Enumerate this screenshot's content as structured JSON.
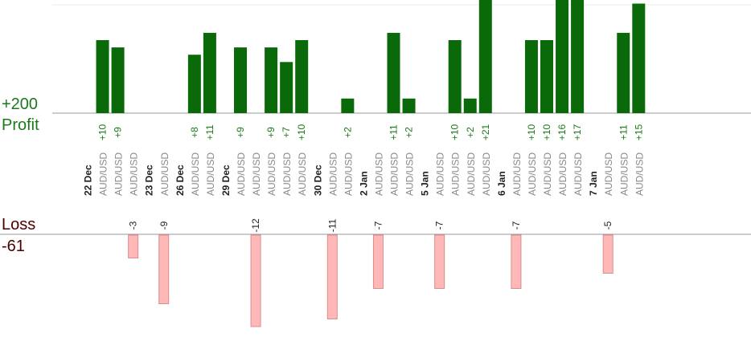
{
  "summary": {
    "profit_total": "+200",
    "profit_label": "Profit",
    "loss_label": "Loss",
    "loss_total": "-61"
  },
  "colors": {
    "profit_bar": "#0a6a0a",
    "profit_text": "#1a7a1a",
    "loss_bar": "#ffb8b8",
    "loss_border": "#e08a8a",
    "loss_text": "#4a0000",
    "date_text": "#222222",
    "symbol_text": "#888888",
    "axis": "#999999"
  },
  "chart_data": {
    "type": "bar",
    "title": "",
    "xlabel": "",
    "ylabel": "",
    "grid": false,
    "legend": "none",
    "categories": [
      "22 Dec",
      "AUD/USD",
      "AUD/USD",
      "AUD/USD",
      "23 Dec",
      "AUD/USD",
      "26 Dec",
      "AUD/USD",
      "AUD/USD",
      "29 Dec",
      "AUD/USD",
      "AUD/USD",
      "AUD/USD",
      "AUD/USD",
      "AUD/USD",
      "30 Dec",
      "AUD/USD",
      "AUD/USD",
      "2 Jan",
      "AUD/USD",
      "AUD/USD",
      "AUD/USD",
      "5 Jan",
      "AUD/USD",
      "AUD/USD",
      "AUD/USD",
      "AUD/USD",
      "6 Jan",
      "AUD/USD",
      "AUD/USD",
      "AUD/USD",
      "AUD/USD",
      "AUD/USD",
      "7 Jan",
      "AUD/USD",
      "AUD/USD",
      "AUD/USD"
    ],
    "series": [
      {
        "values": [
          null,
          10,
          9,
          -3,
          null,
          -9,
          null,
          8,
          11,
          null,
          9,
          -12,
          9,
          7,
          10,
          null,
          -11,
          2,
          null,
          -7,
          11,
          2,
          null,
          -7,
          10,
          2,
          21,
          null,
          -7,
          10,
          10,
          16,
          17,
          null,
          -5,
          11,
          15
        ],
        "labels": [
          "",
          "+10",
          "+9",
          "-3",
          "",
          "-9",
          "",
          "+8",
          "+11",
          "",
          "+9",
          "-12",
          "+9",
          "+7",
          "+10",
          "",
          "-11",
          "+2",
          "",
          "-7",
          "+11",
          "+2",
          "",
          "-7",
          "+10",
          "+2",
          "+21",
          "",
          "-7",
          "+10",
          "+10",
          "+16",
          "+17",
          "",
          "-5",
          "+11",
          "+15"
        ]
      }
    ]
  }
}
